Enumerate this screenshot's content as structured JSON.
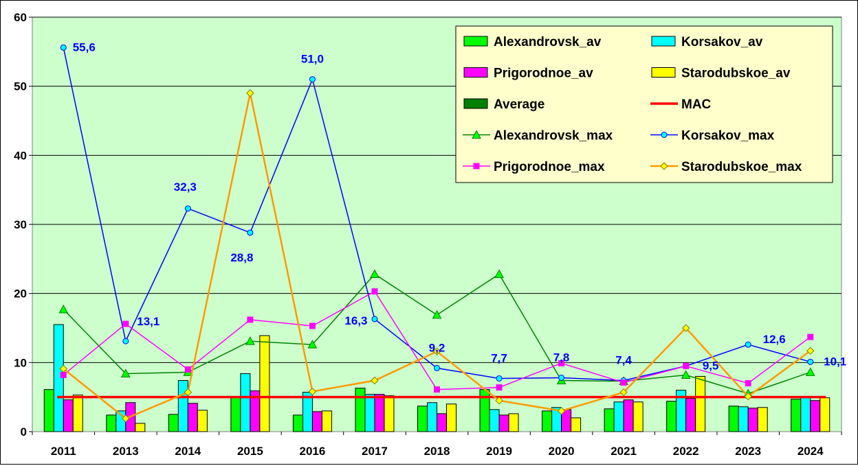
{
  "chart_data": {
    "type": "bar",
    "categories": [
      "2011",
      "2013",
      "2014",
      "2015",
      "2016",
      "2017",
      "2018",
      "2019",
      "2020",
      "2021",
      "2022",
      "2023",
      "2024"
    ],
    "ylim": [
      0,
      60
    ],
    "yticks": [
      "0",
      "10",
      "20",
      "30",
      "40",
      "50",
      "60"
    ],
    "grid": true,
    "legend_position": "top-right",
    "bar_series": [
      {
        "name": "Alexandrovsk_av",
        "color": "#00ff00",
        "values": [
          6.1,
          2.4,
          2.5,
          5.0,
          2.4,
          6.3,
          3.7,
          6.1,
          3.0,
          3.3,
          4.4,
          3.7,
          4.7
        ]
      },
      {
        "name": "Korsakov_av",
        "color": "#00ffff",
        "values": [
          15.5,
          3.0,
          7.4,
          8.4,
          5.7,
          5.4,
          4.2,
          3.2,
          3.5,
          4.3,
          6.0,
          3.6,
          5.0
        ]
      },
      {
        "name": "Prigorodnoe_av",
        "color": "#ff00ff",
        "values": [
          4.6,
          4.2,
          4.1,
          5.9,
          2.9,
          5.4,
          2.6,
          2.4,
          3.2,
          4.6,
          4.8,
          3.4,
          4.5
        ]
      },
      {
        "name": "Starodubskoe_av",
        "color": "#ffff00",
        "values": [
          5.3,
          1.2,
          3.1,
          13.9,
          3.0,
          5.2,
          4.0,
          2.6,
          2.0,
          4.3,
          8.0,
          3.5,
          4.9
        ]
      },
      {
        "name": "Average",
        "color": "#008000",
        "values": []
      }
    ],
    "line_series": [
      {
        "name": "MAC",
        "color": "#ff0000",
        "values": [
          5,
          5,
          5,
          5,
          5,
          5,
          5,
          5,
          5,
          5,
          5,
          5,
          5
        ],
        "marker": "none"
      },
      {
        "name": "Alexandrovsk_max",
        "color": "#008000",
        "marker": "triangle",
        "marker_fill": "#00ff00",
        "values": [
          17.7,
          8.4,
          8.6,
          13.1,
          12.6,
          22.8,
          16.9,
          22.8,
          7.4,
          7.3,
          8.2,
          5.5,
          8.6
        ]
      },
      {
        "name": "Korsakov_max",
        "color": "#0000ff",
        "marker": "circle",
        "marker_fill": "#00ffff",
        "values": [
          55.6,
          13.1,
          32.3,
          28.8,
          51.0,
          16.3,
          9.2,
          7.7,
          7.8,
          7.4,
          9.5,
          12.6,
          10.1
        ]
      },
      {
        "name": "Prigorodnoe_max",
        "color": "#ff00ff",
        "marker": "square",
        "marker_fill": "#ff00ff",
        "values": [
          8.2,
          15.6,
          9.0,
          16.2,
          15.3,
          20.3,
          6.1,
          6.4,
          9.9,
          7.1,
          9.5,
          7.0,
          13.7
        ]
      },
      {
        "name": "Starodubskoe_max",
        "color": "#ff9900",
        "marker": "diamond",
        "marker_fill": "#ffff00",
        "values": [
          9.1,
          1.9,
          5.7,
          49.0,
          5.8,
          7.4,
          11.6,
          4.5,
          3.0,
          5.7,
          15.0,
          5.1,
          11.7
        ]
      }
    ],
    "data_labels": [
      "55,6",
      "13,1",
      "32,3",
      "28,8",
      "51,0",
      "16,3",
      "9,2",
      "7,7",
      "7,8",
      "7,4",
      "9,5",
      "12,6",
      "10,1"
    ],
    "legend": {
      "columns": [
        [
          "Alexandrovsk_av",
          "Prigorodnoe_av",
          "Average",
          "Alexandrovsk_max",
          "Prigorodnoe_max"
        ],
        [
          "Korsakov_av",
          "Starodubskoe_av",
          "MAC",
          "Korsakov_max",
          "Starodubskoe_max"
        ]
      ]
    },
    "colors": {
      "plot_background": "#ccffcc",
      "gridline": "#000000",
      "legend_background": "#ffffcc",
      "data_label": "#0000ff"
    }
  }
}
